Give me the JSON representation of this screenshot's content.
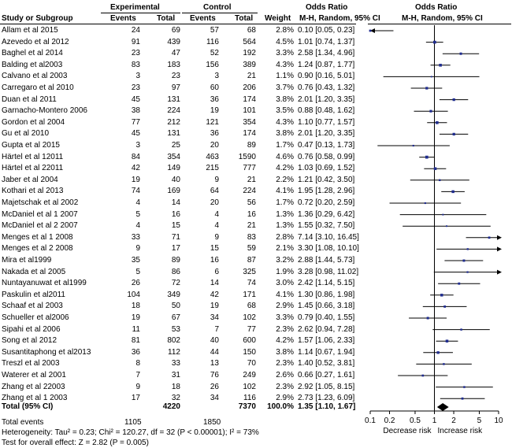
{
  "header": {
    "col_study": "Study or Subgroup",
    "group_experimental": "Experimental",
    "group_control": "Control",
    "col_events": "Events",
    "col_total": "Total",
    "col_weight": "Weight",
    "col_or": "Odds Ratio",
    "col_method": "M-H, Random, 95% CI",
    "plot_title": "Odds Ratio",
    "plot_method": "M-H, Random, 95% CI"
  },
  "studies": [
    {
      "name": "Allam et al 2015",
      "ee": "24",
      "et": "69",
      "ce": "57",
      "ct": "68",
      "weight": "2.8%",
      "ci": "0.10 [0.05, 0.23]"
    },
    {
      "name": "Azevedo et al 2012",
      "ee": "91",
      "et": "439",
      "ce": "116",
      "ct": "564",
      "weight": "4.5%",
      "ci": "1.01 [0.74, 1.37]"
    },
    {
      "name": "Baghel et al 2014",
      "ee": "23",
      "et": "47",
      "ce": "52",
      "ct": "192",
      "weight": "3.3%",
      "ci": "2.58 [1.34, 4.96]"
    },
    {
      "name": "Balding et al2003",
      "ee": "83",
      "et": "183",
      "ce": "156",
      "ct": "389",
      "weight": "4.3%",
      "ci": "1.24 [0.87, 1.77]"
    },
    {
      "name": "Calvano  et al 2003",
      "ee": "3",
      "et": "23",
      "ce": "3",
      "ct": "21",
      "weight": "1.1%",
      "ci": "0.90 [0.16, 5.01]"
    },
    {
      "name": "Carregaro et al 2010",
      "ee": "23",
      "et": "97",
      "ce": "60",
      "ct": "206",
      "weight": "3.7%",
      "ci": "0.76 [0.43, 1.32]"
    },
    {
      "name": "Duan et al 2011",
      "ee": "45",
      "et": "131",
      "ce": "36",
      "ct": "174",
      "weight": "3.8%",
      "ci": "2.01 [1.20, 3.35]"
    },
    {
      "name": "Garnacho-Montero  2006",
      "ee": "38",
      "et": "224",
      "ce": "19",
      "ct": "101",
      "weight": "3.5%",
      "ci": "0.88 [0.48, 1.62]"
    },
    {
      "name": "Gordon et al 2004",
      "ee": "77",
      "et": "212",
      "ce": "121",
      "ct": "354",
      "weight": "4.3%",
      "ci": "1.10 [0.77, 1.57]"
    },
    {
      "name": "Gu  et al 2010",
      "ee": "45",
      "et": "131",
      "ce": "36",
      "ct": "174",
      "weight": "3.8%",
      "ci": "2.01 [1.20, 3.35]"
    },
    {
      "name": "Gupta et al 2015",
      "ee": "3",
      "et": "25",
      "ce": "20",
      "ct": "89",
      "weight": "1.7%",
      "ci": "0.47 [0.13, 1.73]"
    },
    {
      "name": "Härtel et al 12011",
      "ee": "84",
      "et": "354",
      "ce": "463",
      "ct": "1590",
      "weight": "4.6%",
      "ci": "0.76 [0.58, 0.99]"
    },
    {
      "name": "Härtel et al 22011",
      "ee": "42",
      "et": "149",
      "ce": "215",
      "ct": "777",
      "weight": "4.2%",
      "ci": "1.03 [0.69, 1.52]"
    },
    {
      "name": "Jaber et al 2004",
      "ee": "19",
      "et": "40",
      "ce": "9",
      "ct": "21",
      "weight": "2.2%",
      "ci": "1.21 [0.42, 3.50]"
    },
    {
      "name": "Kothari et al 2013",
      "ee": "74",
      "et": "169",
      "ce": "64",
      "ct": "224",
      "weight": "4.1%",
      "ci": "1.95 [1.28, 2.96]"
    },
    {
      "name": "Majetschak et al 2002",
      "ee": "4",
      "et": "14",
      "ce": "20",
      "ct": "56",
      "weight": "1.7%",
      "ci": "0.72 [0.20, 2.59]"
    },
    {
      "name": "McDaniel  et al 1 2007",
      "ee": "5",
      "et": "16",
      "ce": "4",
      "ct": "16",
      "weight": "1.3%",
      "ci": "1.36 [0.29, 6.42]"
    },
    {
      "name": "McDaniel  et al 2 2007",
      "ee": "4",
      "et": "15",
      "ce": "4",
      "ct": "21",
      "weight": "1.3%",
      "ci": "1.55 [0.32, 7.50]"
    },
    {
      "name": "Menges et al 1 2008",
      "ee": "33",
      "et": "71",
      "ce": "9",
      "ct": "83",
      "weight": "2.8%",
      "ci": "7.14 [3.10, 16.45]"
    },
    {
      "name": "Menges et al 2 2008",
      "ee": "9",
      "et": "17",
      "ce": "15",
      "ct": "59",
      "weight": "2.1%",
      "ci": "3.30 [1.08, 10.10]"
    },
    {
      "name": "Mira  et al1999",
      "ee": "35",
      "et": "89",
      "ce": "16",
      "ct": "87",
      "weight": "3.2%",
      "ci": "2.88 [1.44, 5.73]"
    },
    {
      "name": "Nakada et al 2005",
      "ee": "5",
      "et": "86",
      "ce": "6",
      "ct": "325",
      "weight": "1.9%",
      "ci": "3.28 [0.98, 11.02]"
    },
    {
      "name": "Nuntayanuwat et al1999",
      "ee": "26",
      "et": "72",
      "ce": "14",
      "ct": "74",
      "weight": "3.0%",
      "ci": "2.42 [1.14, 5.15]"
    },
    {
      "name": "Paskulin et al2011",
      "ee": "104",
      "et": "349",
      "ce": "42",
      "ct": "171",
      "weight": "4.1%",
      "ci": "1.30 [0.86, 1.98]"
    },
    {
      "name": "Schaaf et al 2003",
      "ee": "18",
      "et": "50",
      "ce": "19",
      "ct": "68",
      "weight": "2.9%",
      "ci": "1.45 [0.66, 3.18]"
    },
    {
      "name": "Schueller et al2006",
      "ee": "19",
      "et": "67",
      "ce": "34",
      "ct": "102",
      "weight": "3.3%",
      "ci": "0.79 [0.40, 1.55]"
    },
    {
      "name": "Sipahi et al 2006",
      "ee": "11",
      "et": "53",
      "ce": "7",
      "ct": "77",
      "weight": "2.3%",
      "ci": "2.62 [0.94, 7.28]"
    },
    {
      "name": "Song et al 2012",
      "ee": "81",
      "et": "802",
      "ce": "40",
      "ct": "600",
      "weight": "4.2%",
      "ci": "1.57 [1.06, 2.33]"
    },
    {
      "name": "Susantitaphong et al2013",
      "ee": "36",
      "et": "112",
      "ce": "44",
      "ct": "150",
      "weight": "3.8%",
      "ci": "1.14 [0.67, 1.94]"
    },
    {
      "name": "Treszl et al 2003",
      "ee": "8",
      "et": "33",
      "ce": "13",
      "ct": "70",
      "weight": "2.3%",
      "ci": "1.40 [0.52, 3.81]"
    },
    {
      "name": "Waterer et al 2001",
      "ee": "7",
      "et": "31",
      "ce": "76",
      "ct": "249",
      "weight": "2.6%",
      "ci": "0.66 [0.27, 1.61]"
    },
    {
      "name": "Zhang et al 22003",
      "ee": "9",
      "et": "18",
      "ce": "26",
      "ct": "102",
      "weight": "2.3%",
      "ci": "2.92 [1.05, 8.15]"
    },
    {
      "name": "Zhang et al 1 2003",
      "ee": "17",
      "et": "32",
      "ce": "34",
      "ct": "116",
      "weight": "2.9%",
      "ci": "2.73 [1.23, 6.09]"
    }
  ],
  "total": {
    "name": "Total (95% CI)",
    "et": "4220",
    "ct": "7370",
    "weight": "100.0%",
    "ci": "1.35 [1.10, 1.67]"
  },
  "total_events": {
    "label": "Total events",
    "ee": "1105",
    "ce": "1850"
  },
  "heterogeneity": "Heterogeneity: Tau² = 0.23; Chi² = 120.27, df = 32 (P < 0.00001); I² = 73%",
  "overall_effect": "Test for overall effect: Z = 2.82 (P = 0.005)",
  "axis_label_left": "Decrease risk",
  "axis_label_right": "Increase risk",
  "colors": {
    "square": "#1f2c8f",
    "line": "#000000",
    "diamond": "#000000"
  },
  "chart_data": {
    "type": "forest",
    "title": "Odds Ratio",
    "subtitle": "M-H, Random, 95% CI",
    "xscale": "log",
    "xlim": [
      0.1,
      10
    ],
    "xticks": [
      0.1,
      0.2,
      0.5,
      1,
      2,
      5,
      10
    ],
    "xtick_labels": [
      "0.1",
      "0.2",
      "0.5",
      "1",
      "2",
      "5",
      "10"
    ],
    "reference_line": 1,
    "points": [
      {
        "or": 0.1,
        "lo": 0.05,
        "hi": 0.23,
        "w": 2.8
      },
      {
        "or": 1.01,
        "lo": 0.74,
        "hi": 1.37,
        "w": 4.5
      },
      {
        "or": 2.58,
        "lo": 1.34,
        "hi": 4.96,
        "w": 3.3
      },
      {
        "or": 1.24,
        "lo": 0.87,
        "hi": 1.77,
        "w": 4.3
      },
      {
        "or": 0.9,
        "lo": 0.16,
        "hi": 5.01,
        "w": 1.1
      },
      {
        "or": 0.76,
        "lo": 0.43,
        "hi": 1.32,
        "w": 3.7
      },
      {
        "or": 2.01,
        "lo": 1.2,
        "hi": 3.35,
        "w": 3.8
      },
      {
        "or": 0.88,
        "lo": 0.48,
        "hi": 1.62,
        "w": 3.5
      },
      {
        "or": 1.1,
        "lo": 0.77,
        "hi": 1.57,
        "w": 4.3
      },
      {
        "or": 2.01,
        "lo": 1.2,
        "hi": 3.35,
        "w": 3.8
      },
      {
        "or": 0.47,
        "lo": 0.13,
        "hi": 1.73,
        "w": 1.7
      },
      {
        "or": 0.76,
        "lo": 0.58,
        "hi": 0.99,
        "w": 4.6
      },
      {
        "or": 1.03,
        "lo": 0.69,
        "hi": 1.52,
        "w": 4.2
      },
      {
        "or": 1.21,
        "lo": 0.42,
        "hi": 3.5,
        "w": 2.2
      },
      {
        "or": 1.95,
        "lo": 1.28,
        "hi": 2.96,
        "w": 4.1
      },
      {
        "or": 0.72,
        "lo": 0.2,
        "hi": 2.59,
        "w": 1.7
      },
      {
        "or": 1.36,
        "lo": 0.29,
        "hi": 6.42,
        "w": 1.3
      },
      {
        "or": 1.55,
        "lo": 0.32,
        "hi": 7.5,
        "w": 1.3
      },
      {
        "or": 7.14,
        "lo": 3.1,
        "hi": 16.45,
        "w": 2.8
      },
      {
        "or": 3.3,
        "lo": 1.08,
        "hi": 10.1,
        "w": 2.1
      },
      {
        "or": 2.88,
        "lo": 1.44,
        "hi": 5.73,
        "w": 3.2
      },
      {
        "or": 3.28,
        "lo": 0.98,
        "hi": 11.02,
        "w": 1.9
      },
      {
        "or": 2.42,
        "lo": 1.14,
        "hi": 5.15,
        "w": 3.0
      },
      {
        "or": 1.3,
        "lo": 0.86,
        "hi": 1.98,
        "w": 4.1
      },
      {
        "or": 1.45,
        "lo": 0.66,
        "hi": 3.18,
        "w": 2.9
      },
      {
        "or": 0.79,
        "lo": 0.4,
        "hi": 1.55,
        "w": 3.3
      },
      {
        "or": 2.62,
        "lo": 0.94,
        "hi": 7.28,
        "w": 2.3
      },
      {
        "or": 1.57,
        "lo": 1.06,
        "hi": 2.33,
        "w": 4.2
      },
      {
        "or": 1.14,
        "lo": 0.67,
        "hi": 1.94,
        "w": 3.8
      },
      {
        "or": 1.4,
        "lo": 0.52,
        "hi": 3.81,
        "w": 2.3
      },
      {
        "or": 0.66,
        "lo": 0.27,
        "hi": 1.61,
        "w": 2.6
      },
      {
        "or": 2.92,
        "lo": 1.05,
        "hi": 8.15,
        "w": 2.3
      },
      {
        "or": 2.73,
        "lo": 1.23,
        "hi": 6.09,
        "w": 2.9
      }
    ],
    "pooled": {
      "or": 1.35,
      "lo": 1.1,
      "hi": 1.67
    }
  }
}
